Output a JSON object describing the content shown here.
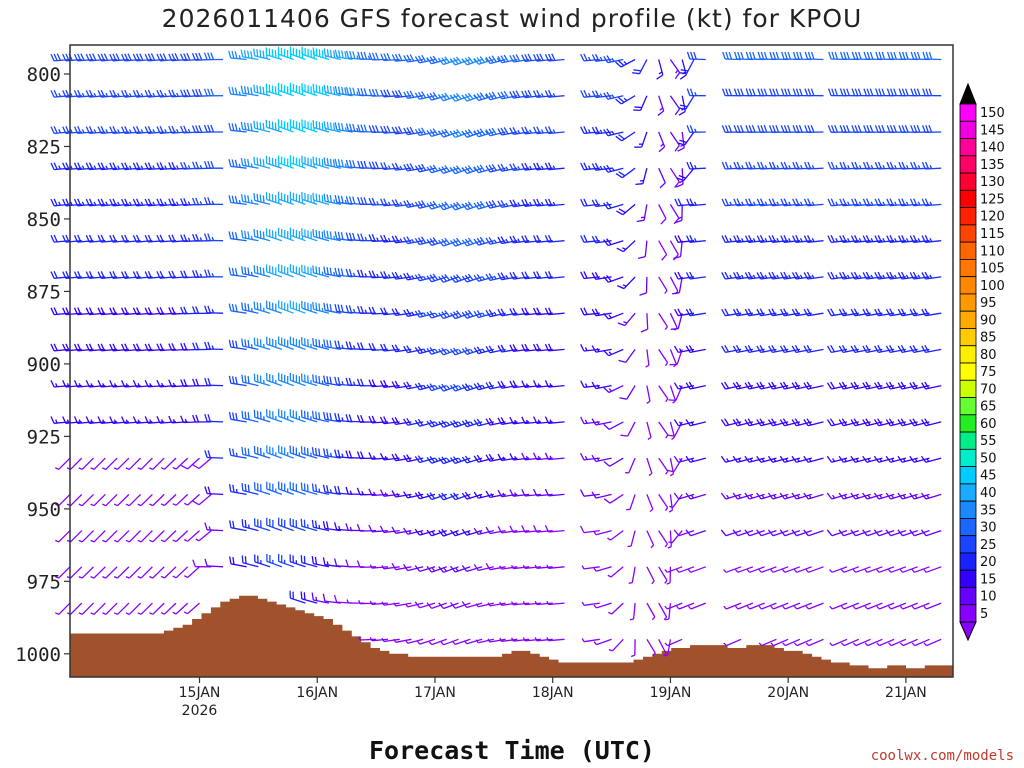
{
  "chart_data": {
    "type": "wind_barb_profile",
    "title": "2026011406 GFS forecast wind profile (kt) for KPOU",
    "xlabel": "Forecast Time (UTC)",
    "ylabel": "",
    "credit": "coolwx.com/models",
    "y_ticks": [
      "800",
      "825",
      "850",
      "875",
      "900",
      "925",
      "950",
      "975",
      "1000"
    ],
    "y_tick_values": [
      800,
      825,
      850,
      875,
      900,
      925,
      950,
      975,
      1000
    ],
    "y_range": [
      790,
      1008
    ],
    "x_range_hours": [
      -15,
      210
    ],
    "x_ticks": [
      "15JAN",
      "16JAN",
      "17JAN",
      "18JAN",
      "19JAN",
      "20JAN",
      "21JAN"
    ],
    "x_tick_hours": [
      18,
      48,
      78,
      108,
      138,
      168,
      198
    ],
    "x_subtick": "2026",
    "colorbar_levels": [
      "150",
      "145",
      "140",
      "135",
      "130",
      "125",
      "120",
      "115",
      "110",
      "105",
      "100",
      "95",
      "90",
      "85",
      "80",
      "75",
      "70",
      "65",
      "60",
      "55",
      "50",
      "45",
      "40",
      "35",
      "30",
      "25",
      "20",
      "15",
      "10",
      "5"
    ],
    "colorbar_colors": [
      "#ff00ff",
      "#f000e0",
      "#ff0099",
      "#ff0066",
      "#ff0033",
      "#ff0000",
      "#ff2200",
      "#ff4400",
      "#ff6600",
      "#ff7700",
      "#ff8800",
      "#ff9900",
      "#ffaa00",
      "#ffcc00",
      "#ffee00",
      "#ffff00",
      "#ccff00",
      "#66ff33",
      "#22ee22",
      "#00ee88",
      "#00eecc",
      "#00ccff",
      "#1aaaff",
      "#1a88ff",
      "#1a66ff",
      "#1a44ff",
      "#1a22ff",
      "#3300ff",
      "#6600ff",
      "#8800ff"
    ],
    "surface_pressure_hpa": [
      993,
      993,
      993,
      993,
      993,
      993,
      993,
      993,
      993,
      993,
      992,
      991,
      990,
      988,
      986,
      984,
      982,
      981,
      980,
      980,
      981,
      982,
      983,
      984,
      985,
      986,
      987,
      988,
      990,
      992,
      994,
      996,
      998,
      999,
      1000,
      1000,
      1001,
      1001,
      1001,
      1001,
      1001,
      1001,
      1001,
      1001,
      1001,
      1001,
      1000,
      999,
      999,
      1000,
      1001,
      1002,
      1003,
      1003,
      1003,
      1003,
      1003,
      1003,
      1003,
      1003,
      1002,
      1001,
      1000,
      999,
      998,
      998,
      997,
      997,
      997,
      997,
      998,
      998,
      997,
      997,
      997,
      998,
      999,
      999,
      1000,
      1001,
      1002,
      1003,
      1003,
      1004,
      1004,
      1005,
      1005,
      1004,
      1004,
      1005,
      1005,
      1004,
      1004,
      1004
    ]
  }
}
